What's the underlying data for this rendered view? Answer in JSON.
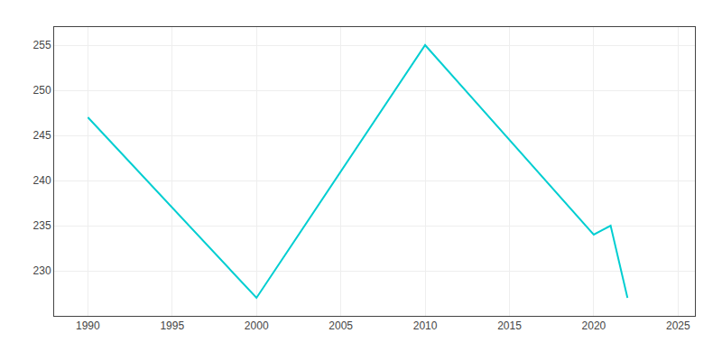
{
  "chart_data": {
    "type": "line",
    "x": [
      1990,
      2000,
      2010,
      2020,
      2021,
      2022
    ],
    "values": [
      247,
      227,
      255,
      234,
      235,
      227
    ],
    "color": "#00CED1",
    "xlim": [
      1988,
      2026
    ],
    "ylim": [
      225,
      257
    ],
    "xticks": [
      1990,
      1995,
      2000,
      2005,
      2010,
      2015,
      2020,
      2025
    ],
    "yticks": [
      230,
      235,
      240,
      245,
      250,
      255
    ],
    "grid": true
  }
}
